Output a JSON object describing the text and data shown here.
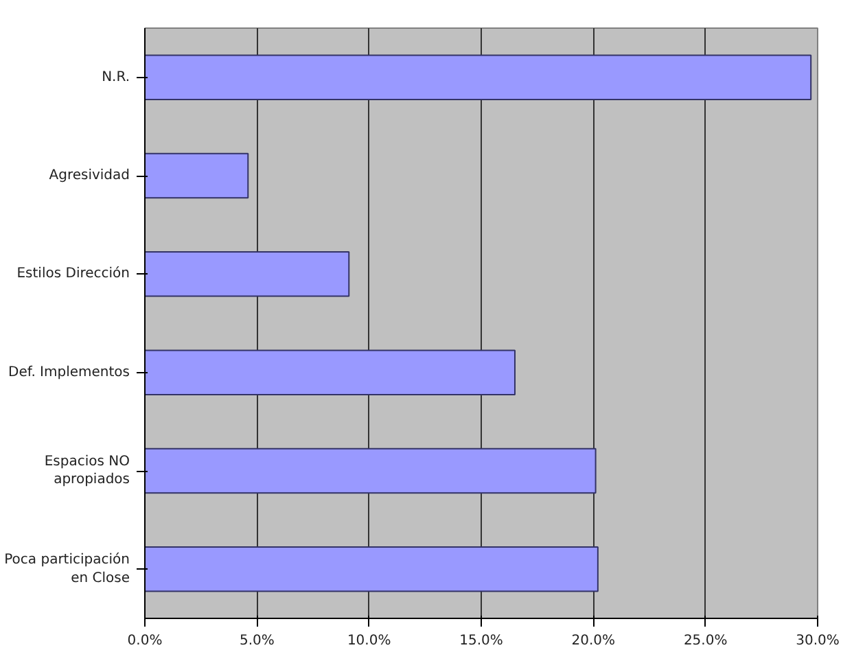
{
  "chart_data": {
    "type": "bar",
    "orientation": "horizontal",
    "categories": [
      "N.R.",
      "Agresividad",
      "Estilos Dirección",
      "Def. Implementos",
      "Espacios NO apropiados",
      "Poca participación en Close"
    ],
    "values": [
      29.7,
      4.6,
      9.1,
      16.5,
      20.1,
      20.2
    ],
    "color": "#9999ff",
    "xlim": [
      0,
      30
    ],
    "xticks": [
      {
        "value": 0,
        "label": "0.0%"
      },
      {
        "value": 5,
        "label": "5.0%"
      },
      {
        "value": 10,
        "label": "10.0%"
      },
      {
        "value": 15,
        "label": "15.0%"
      },
      {
        "value": 20,
        "label": "20.0%"
      },
      {
        "value": 25,
        "label": "25.0%"
      },
      {
        "value": 30,
        "label": "30.0%"
      }
    ],
    "grid": "x"
  }
}
